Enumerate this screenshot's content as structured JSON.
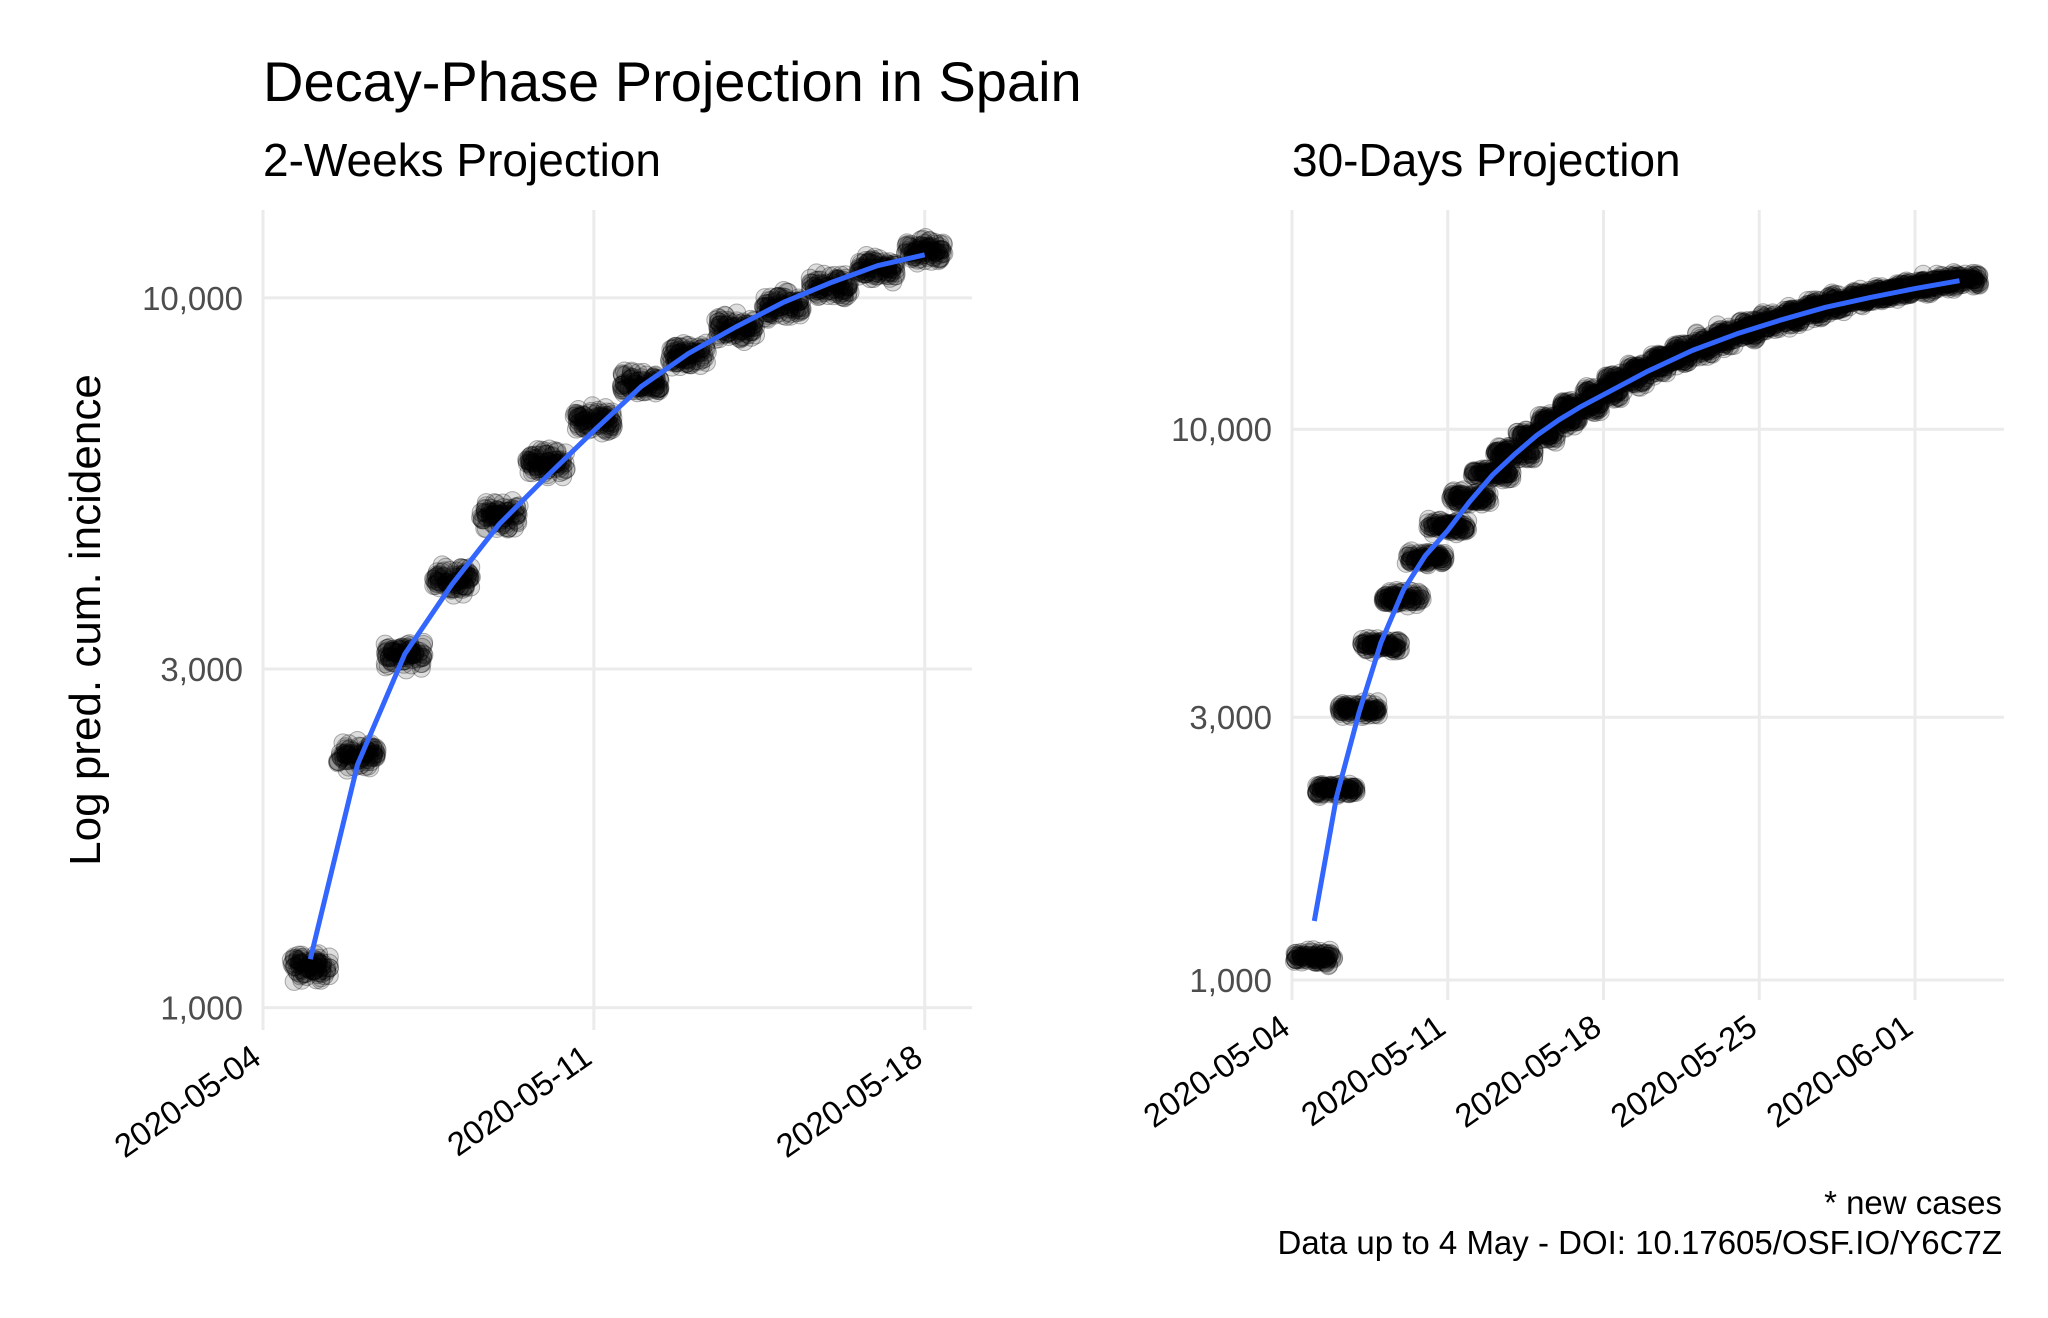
{
  "title": "Decay-Phase Projection in Spain",
  "caption": [
    "* new cases",
    "Data up to 4 May - DOI: 10.17605/OSF.IO/Y6C7Z"
  ],
  "colors": {
    "fit_line": "#3366ff",
    "points": "#000000",
    "grid": "#ebebeb"
  },
  "chart_data": [
    {
      "type": "scatter",
      "subtitle": "2-Weeks Projection",
      "ylabel": "Log pred. cum. incidence",
      "yscale": "log10",
      "ylim": [
        930,
        13300
      ],
      "yticks": [
        1000,
        3000,
        10000
      ],
      "ytick_labels": [
        "1,000",
        "3,000",
        "10,000"
      ],
      "xlim": [
        "2020-05-04",
        "2020-05-19"
      ],
      "xticks": [
        "2020-05-04",
        "2020-05-11",
        "2020-05-18"
      ],
      "points_by_date": {
        "dates": [
          "2020-05-05",
          "2020-05-06",
          "2020-05-07",
          "2020-05-08",
          "2020-05-09",
          "2020-05-10",
          "2020-05-11",
          "2020-05-12",
          "2020-05-13",
          "2020-05-14",
          "2020-05-15",
          "2020-05-16",
          "2020-05-17",
          "2020-05-18"
        ],
        "center": [
          1140,
          2270,
          3150,
          4020,
          4950,
          5850,
          6700,
          7550,
          8300,
          9050,
          9750,
          10400,
          11000,
          11650
        ],
        "spread_pct": 6
      },
      "fit_line": {
        "x": [
          "2020-05-05",
          "2020-05-06",
          "2020-05-07",
          "2020-05-08",
          "2020-05-09",
          "2020-05-10",
          "2020-05-11",
          "2020-05-12",
          "2020-05-13",
          "2020-05-14",
          "2020-05-15",
          "2020-05-16",
          "2020-05-17",
          "2020-05-18"
        ],
        "y": [
          1170,
          2200,
          3150,
          3950,
          4800,
          5600,
          6500,
          7500,
          8350,
          9100,
          9850,
          10500,
          11100,
          11500
        ]
      }
    },
    {
      "type": "scatter",
      "subtitle": "30-Days Projection",
      "yscale": "log10",
      "ylim": [
        920,
        25000
      ],
      "yticks": [
        1000,
        3000,
        10000
      ],
      "ytick_labels": [
        "1,000",
        "3,000",
        "10,000"
      ],
      "xlim": [
        "2020-05-04",
        "2020-06-05"
      ],
      "xticks": [
        "2020-05-04",
        "2020-05-11",
        "2020-05-18",
        "2020-05-25",
        "2020-06-01"
      ],
      "points_by_date": {
        "dates": [
          "2020-05-05",
          "2020-05-06",
          "2020-05-07",
          "2020-05-08",
          "2020-05-09",
          "2020-05-10",
          "2020-05-11",
          "2020-05-12",
          "2020-05-13",
          "2020-05-14",
          "2020-05-15",
          "2020-05-16",
          "2020-05-17",
          "2020-05-18",
          "2020-05-19",
          "2020-05-20",
          "2020-05-21",
          "2020-05-22",
          "2020-05-23",
          "2020-05-24",
          "2020-05-25",
          "2020-05-26",
          "2020-05-27",
          "2020-05-28",
          "2020-05-29",
          "2020-05-30",
          "2020-05-31",
          "2020-06-01",
          "2020-06-02",
          "2020-06-03"
        ],
        "center": [
          1100,
          2220,
          3100,
          4050,
          4950,
          5850,
          6650,
          7500,
          8300,
          9050,
          9750,
          10400,
          11000,
          11650,
          12250,
          12850,
          13400,
          13950,
          14450,
          14950,
          15400,
          15850,
          16300,
          16700,
          17100,
          17450,
          17800,
          18100,
          18400,
          18700
        ],
        "spread_pct": 4
      },
      "fit_line": {
        "x": [
          "2020-05-05",
          "2020-05-06",
          "2020-05-07",
          "2020-05-08",
          "2020-05-09",
          "2020-05-10",
          "2020-05-11",
          "2020-05-12",
          "2020-05-13",
          "2020-05-14",
          "2020-05-15",
          "2020-05-16",
          "2020-05-17",
          "2020-05-18",
          "2020-05-20",
          "2020-05-22",
          "2020-05-24",
          "2020-05-26",
          "2020-05-28",
          "2020-05-30",
          "2020-06-01",
          "2020-06-03"
        ],
        "y": [
          1280,
          2150,
          3050,
          4100,
          5100,
          5900,
          6550,
          7400,
          8250,
          9000,
          9750,
          10400,
          11000,
          11550,
          12750,
          13900,
          14900,
          15800,
          16650,
          17350,
          18000,
          18600
        ]
      }
    }
  ]
}
